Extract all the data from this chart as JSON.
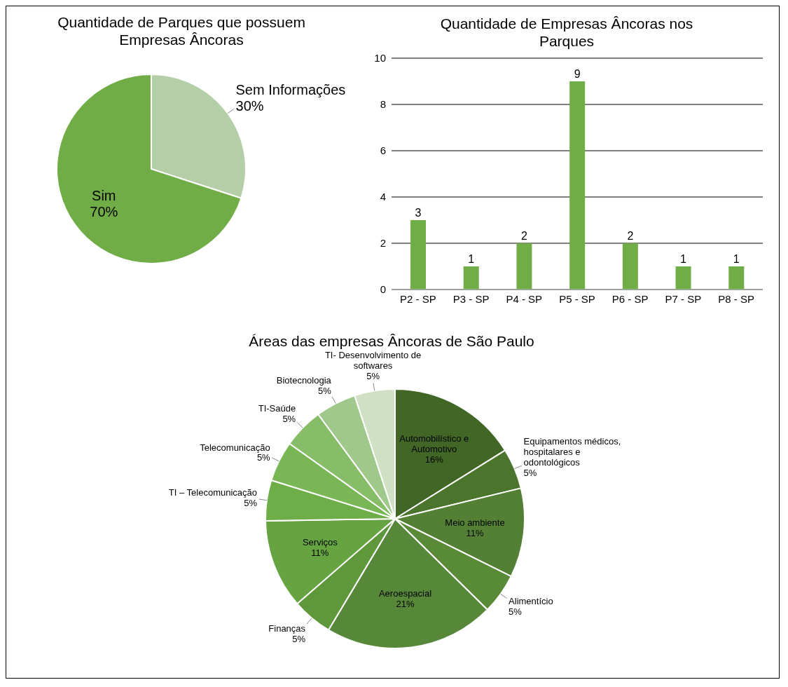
{
  "chart_data": [
    {
      "type": "pie",
      "title": "Quantidade de Parques que possuem Empresas Âncoras",
      "categories": [
        "Sem Informações",
        "Sim"
      ],
      "values": [
        30,
        70
      ],
      "colors": [
        "#b4cfa7",
        "#70ad47"
      ],
      "value_labels": [
        "30%",
        "70%"
      ],
      "legend": false
    },
    {
      "type": "bar",
      "title": "Quantidade de Empresas Âncoras nos Parques",
      "categories": [
        "P2 - SP",
        "P3 - SP",
        "P4 - SP",
        "P5 - SP",
        "P6 - SP",
        "P7 - SP",
        "P8 - SP"
      ],
      "values": [
        3,
        1,
        2,
        9,
        2,
        1,
        1
      ],
      "color": "#70ad47",
      "ylim": [
        0,
        10
      ],
      "yticks": [
        0,
        2,
        4,
        6,
        8,
        10
      ],
      "grid": "y",
      "data_labels": true,
      "legend": false
    },
    {
      "type": "pie",
      "title": "Áreas das empresas Âncoras de São Paulo",
      "categories": [
        "Automobilístico e Automotivo",
        "Equipamentos médicos, hospitalares e odontológicos",
        "Meio ambiente",
        "Alimentício",
        "Aeroespacial",
        "Finanças",
        "Serviços",
        "TI – Telecomunicação",
        "Telecomunicação",
        "TI-Saúde",
        "Biotecnologia",
        "TI- Desenvolvimento de softwares"
      ],
      "values": [
        16,
        5,
        11,
        5,
        21,
        5,
        11,
        5,
        5,
        5,
        5,
        5
      ],
      "colors": [
        "#426626",
        "#4b752d",
        "#538034",
        "#598a37",
        "#57883a",
        "#5f973b",
        "#66a441",
        "#6eae48",
        "#79b655",
        "#87bd68",
        "#a1c88b",
        "#d0e0c4"
      ],
      "value_labels": [
        "16%",
        "5%",
        "11%",
        "5%",
        "21%",
        "5%",
        "11%",
        "5%",
        "5%",
        "5%",
        "5%",
        "5%"
      ],
      "legend": false
    }
  ]
}
